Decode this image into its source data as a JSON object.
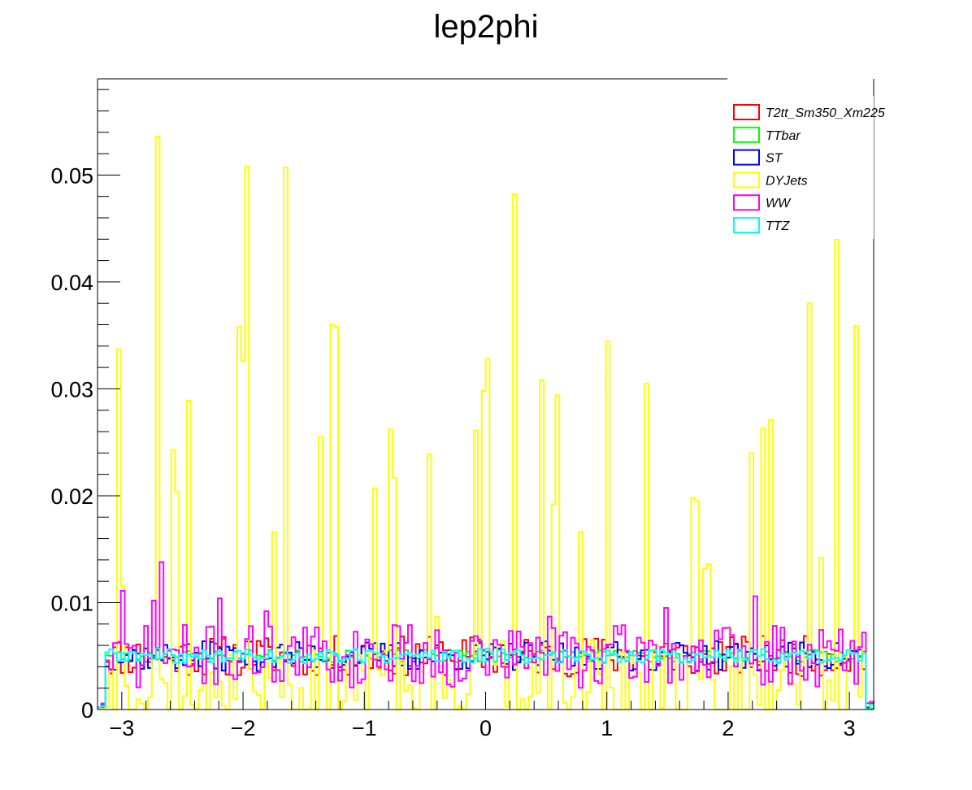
{
  "chart_data": {
    "type": "histogram",
    "title": "lep2phi",
    "xlabel": "",
    "ylabel": "",
    "xlim": [
      -3.2,
      3.2
    ],
    "ylim": [
      0,
      0.059
    ],
    "x_ticks": [
      {
        "value": -3,
        "label": "−3"
      },
      {
        "value": -2,
        "label": "−2"
      },
      {
        "value": -1,
        "label": "−1"
      },
      {
        "value": 0,
        "label": "0"
      },
      {
        "value": 1,
        "label": "1"
      },
      {
        "value": 2,
        "label": "2"
      },
      {
        "value": 3,
        "label": "3"
      }
    ],
    "y_ticks": [
      {
        "value": 0,
        "label": "0"
      },
      {
        "value": 0.01,
        "label": "0.01"
      },
      {
        "value": 0.02,
        "label": "0.02"
      },
      {
        "value": 0.03,
        "label": "0.03"
      },
      {
        "value": 0.04,
        "label": "0.04"
      },
      {
        "value": 0.05,
        "label": "0.05"
      }
    ],
    "legend_position": "top-right",
    "grid": false,
    "bins": 200,
    "series": [
      {
        "name": "T2tt_Sm350_Xm225",
        "color": "#ff0000",
        "baseline": 0.005,
        "spread": 0.0019,
        "seed": 11,
        "peaks": []
      },
      {
        "name": "TTbar",
        "color": "#00ff00",
        "baseline": 0.005,
        "spread": 0.0006,
        "seed": 23,
        "peaks": []
      },
      {
        "name": "ST",
        "color": "#0000ff",
        "baseline": 0.005,
        "spread": 0.0014,
        "seed": 37,
        "peaks": []
      },
      {
        "name": "DYJets",
        "color": "#ffff00",
        "baseline": 0.003,
        "spread": 0.0035,
        "seed": 53,
        "peaks": [
          {
            "x": -3.04,
            "y": 0.0337
          },
          {
            "x": -2.98,
            "y": 0.0115
          },
          {
            "x": -2.7,
            "y": 0.0536
          },
          {
            "x": -2.58,
            "y": 0.0243
          },
          {
            "x": -2.54,
            "y": 0.0204
          },
          {
            "x": -2.44,
            "y": 0.0289
          },
          {
            "x": -2.04,
            "y": 0.0358
          },
          {
            "x": -2.0,
            "y": 0.0326
          },
          {
            "x": -1.96,
            "y": 0.0508
          },
          {
            "x": -1.74,
            "y": 0.0166
          },
          {
            "x": -1.66,
            "y": 0.0507
          },
          {
            "x": -1.36,
            "y": 0.0255
          },
          {
            "x": -1.28,
            "y": 0.036
          },
          {
            "x": -1.24,
            "y": 0.0358
          },
          {
            "x": -0.92,
            "y": 0.0207
          },
          {
            "x": -0.8,
            "y": 0.0262
          },
          {
            "x": -0.76,
            "y": 0.0217
          },
          {
            "x": -0.46,
            "y": 0.0239
          },
          {
            "x": -0.4,
            "y": 0.0087
          },
          {
            "x": -0.08,
            "y": 0.0261
          },
          {
            "x": -0.02,
            "y": 0.0298
          },
          {
            "x": 0.02,
            "y": 0.0328
          },
          {
            "x": 0.24,
            "y": 0.0482
          },
          {
            "x": 0.46,
            "y": 0.0308
          },
          {
            "x": 0.56,
            "y": 0.0192
          },
          {
            "x": 0.6,
            "y": 0.0294
          },
          {
            "x": 0.78,
            "y": 0.0166
          },
          {
            "x": 1.0,
            "y": 0.0344
          },
          {
            "x": 1.32,
            "y": 0.0305
          },
          {
            "x": 1.7,
            "y": 0.0198
          },
          {
            "x": 1.74,
            "y": 0.0195
          },
          {
            "x": 1.8,
            "y": 0.0132
          },
          {
            "x": 1.84,
            "y": 0.0136
          },
          {
            "x": 2.18,
            "y": 0.024
          },
          {
            "x": 2.3,
            "y": 0.0263
          },
          {
            "x": 2.34,
            "y": 0.0271
          },
          {
            "x": 2.66,
            "y": 0.038
          },
          {
            "x": 2.76,
            "y": 0.0142
          },
          {
            "x": 2.88,
            "y": 0.044
          },
          {
            "x": 3.04,
            "y": 0.0359
          }
        ]
      },
      {
        "name": "WW",
        "color": "#ff00ff",
        "baseline": 0.005,
        "spread": 0.003,
        "seed": 71,
        "peaks": [
          {
            "x": -3.0,
            "y": 0.0111
          },
          {
            "x": -2.74,
            "y": 0.0102
          },
          {
            "x": -2.66,
            "y": 0.0138
          },
          {
            "x": -2.2,
            "y": 0.0104
          },
          {
            "x": -1.8,
            "y": 0.0092
          },
          {
            "x": -0.72,
            "y": 0.0078
          },
          {
            "x": 0.54,
            "y": 0.0087
          },
          {
            "x": 1.48,
            "y": 0.0095
          },
          {
            "x": 2.22,
            "y": 0.0106
          }
        ]
      },
      {
        "name": "TTZ",
        "color": "#00ffff",
        "baseline": 0.005,
        "spread": 0.0007,
        "seed": 89,
        "peaks": []
      }
    ]
  }
}
